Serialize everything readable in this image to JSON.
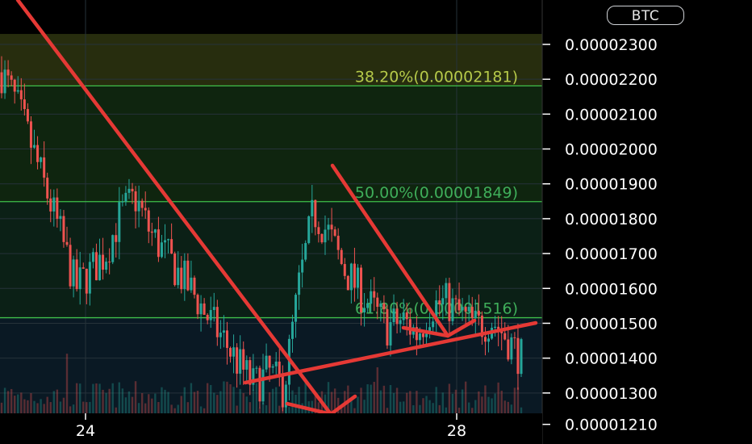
{
  "currency_badge": "BTC",
  "colors": {
    "background": "#000000",
    "fib_line": "#3fbf4a",
    "candle_up": "#26a69a",
    "candle_down": "#ef5350",
    "annotation": "#e53935",
    "label_yellow": "#b5c94a",
    "label_green": "#3fae5a",
    "axis_text": "#ffffff"
  },
  "chart_data": {
    "type": "candlestick",
    "y_ticks": [
      "0.00002300",
      "0.00002200",
      "0.00002100",
      "0.00002000",
      "0.00001900",
      "0.00001800",
      "0.00001700",
      "0.00001600",
      "0.00001500",
      "0.00001400",
      "0.00001300",
      "0.00001210"
    ],
    "x_ticks": [
      "24",
      "28"
    ],
    "ylim": [
      1.2e-05,
      2.33e-05
    ],
    "fib_levels": [
      {
        "label": "38.20%(0.00002181)",
        "value": 2.181e-05
      },
      {
        "label": "50.00%(0.00001849)",
        "value": 1.849e-05
      },
      {
        "label": "61.80%(0.00001516)",
        "value": 1.516e-05
      }
    ],
    "zones": [
      {
        "from": 2.181e-05,
        "to": 2.33e-05,
        "color": "#272d0e"
      },
      {
        "from": 1.849e-05,
        "to": 2.181e-05,
        "color": "#0f250f"
      },
      {
        "from": 1.516e-05,
        "to": 1.849e-05,
        "color": "#0b2016"
      },
      {
        "from": 1.2e-05,
        "to": 1.516e-05,
        "color": "#0a1924"
      }
    ],
    "price_path": [
      2.22e-05,
      2.13e-05,
      2.01e-05,
      1.88e-05,
      1.75e-05,
      1.6e-05,
      1.65e-05,
      1.7e-05,
      1.81e-05,
      1.86e-05,
      1.76e-05,
      1.7e-05,
      1.64e-05,
      1.58e-05,
      1.51e-05,
      1.45e-05,
      1.38e-05,
      1.32e-05,
      1.36e-05,
      1.31e-05,
      1.6e-05,
      1.82e-05,
      1.76e-05,
      1.66e-05,
      1.6e-05,
      1.54e-05,
      1.49e-05,
      1.51e-05,
      1.47e-05,
      1.55e-05,
      1.56e-05,
      1.52e-05,
      1.49e-05,
      1.51e-05,
      1.46e-05,
      1.4e-05
    ],
    "annotations": "red trend lines: two descending arrows and an ascending support line"
  }
}
